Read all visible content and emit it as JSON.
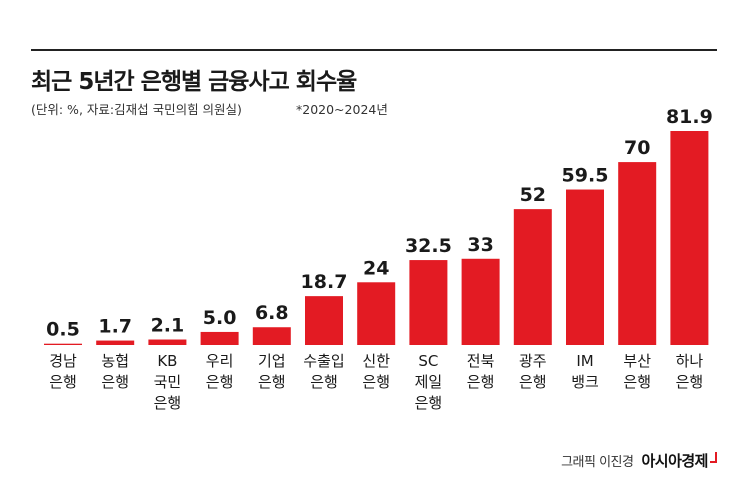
{
  "title": "최근 5년간 은행별 금융사고 회수율",
  "subtitle": "(단위: %, 자료:김재섭 국민의힘 의원실)",
  "note": "*2020~2024년",
  "credit": "그래픽 이진경",
  "brand": "아시아경제",
  "colors": {
    "bar": "#e31b23",
    "text": "#1a1a1a"
  },
  "chart_data": {
    "type": "bar",
    "title": "최근 5년간 은행별 금융사고 회수율",
    "xlabel": "",
    "ylabel": "",
    "ylim": [
      0,
      81.9
    ],
    "grid": false,
    "categories": [
      "경남\n은행",
      "농협\n은행",
      "KB\n국민\n은행",
      "우리\n은행",
      "기업\n은행",
      "수출입\n은행",
      "신한\n은행",
      "SC\n제일\n은행",
      "전북\n은행",
      "광주\n은행",
      "IM\n뱅크",
      "부산\n은행",
      "하나\n은행"
    ],
    "values": [
      0.5,
      1.7,
      2.1,
      5.0,
      6.8,
      18.7,
      24,
      32.5,
      33,
      52,
      59.5,
      70,
      81.9
    ],
    "value_labels": [
      "0.5",
      "1.7",
      "2.1",
      "5.0",
      "6.8",
      "18.7",
      "24",
      "32.5",
      "33",
      "52",
      "59.5",
      "70",
      "81.9"
    ]
  }
}
